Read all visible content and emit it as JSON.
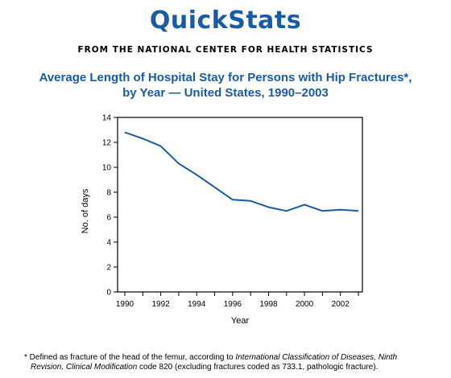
{
  "header": {
    "masthead": "QuickStats",
    "source": "FROM THE NATIONAL CENTER FOR HEALTH STATISTICS"
  },
  "colors": {
    "brand": "#1a5ba8",
    "line": "#1a5ba8",
    "axis": "#000000"
  },
  "chart_data": {
    "type": "line",
    "title_line1": "Average Length of Hospital Stay for Persons with Hip Fractures*,",
    "title_line2": "by Year — United States, 1990–2003",
    "xlabel": "Year",
    "ylabel": "No. of days",
    "xlim": [
      1990,
      2003
    ],
    "ylim": [
      0,
      14
    ],
    "x_ticks": [
      "1990",
      "1992",
      "1994",
      "1996",
      "1998",
      "2000",
      "2002"
    ],
    "y_ticks": [
      "0",
      "2",
      "4",
      "6",
      "8",
      "10",
      "12",
      "14"
    ],
    "grid": false,
    "series": [
      {
        "x": [
          1990,
          1991,
          1992,
          1993,
          1994,
          1995,
          1996,
          1997,
          1998,
          1999,
          2000,
          2001,
          2002,
          2003
        ],
        "values": [
          12.8,
          12.3,
          11.7,
          10.3,
          9.4,
          8.4,
          7.4,
          7.3,
          6.8,
          6.5,
          7.0,
          6.5,
          6.6,
          6.5
        ]
      }
    ]
  },
  "footnote": {
    "marker": "*",
    "text_a": " Defined as fracture of the head of the femur, according to ",
    "text_b": "International Classification of Diseases, Ninth",
    "text_c": "Revision, Clinical Modification",
    "text_d": " code 820 (excluding fractures coded as 733.1, pathologic fracture)."
  }
}
